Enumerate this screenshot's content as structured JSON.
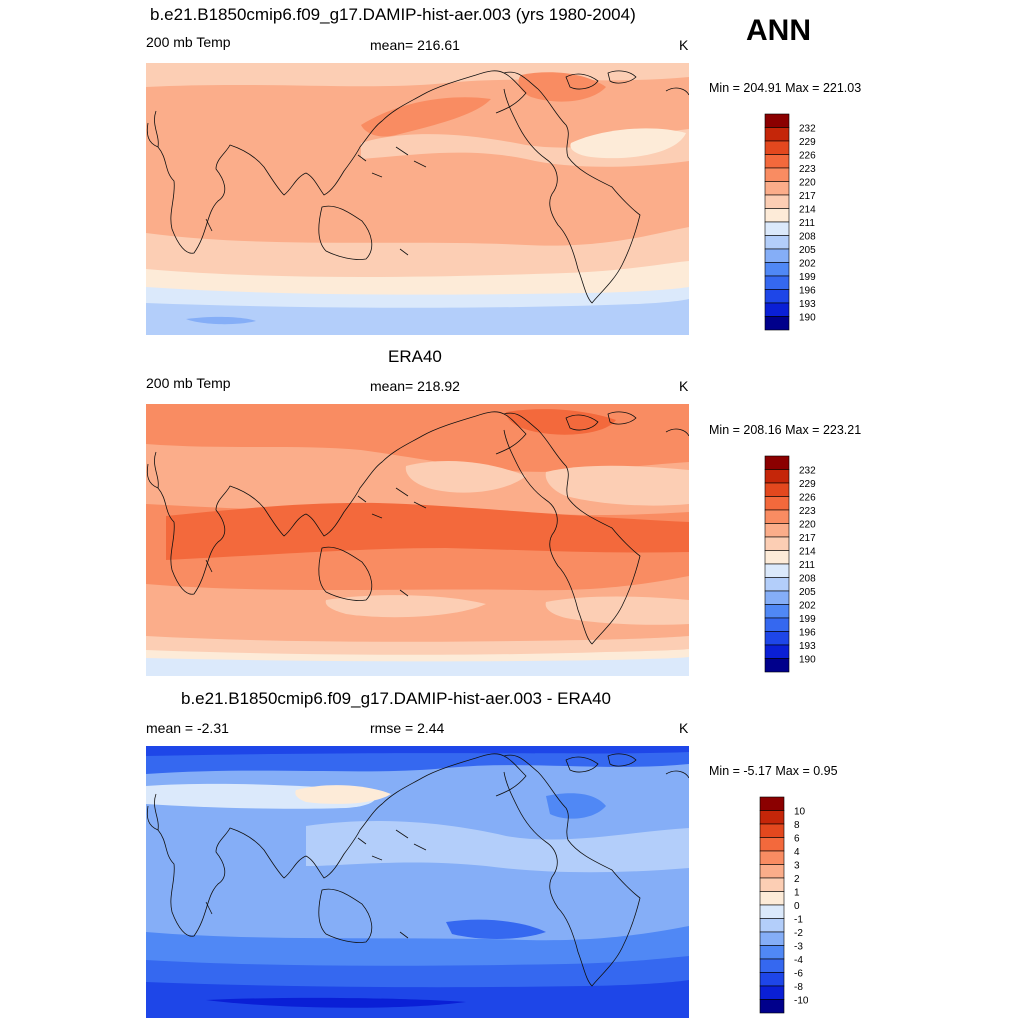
{
  "season": "ANN",
  "palettes": {
    "abs": [
      "#00008b",
      "#0a1fd6",
      "#1e46e8",
      "#3568f0",
      "#5088f5",
      "#85aef7",
      "#b3cefa",
      "#dbe9fb",
      "#fdebd8",
      "#fcceb4",
      "#fbad8a",
      "#f98c62",
      "#f3693c",
      "#e3481e",
      "#c52609",
      "#8b0000"
    ],
    "diff": [
      "#00008b",
      "#0a1fd6",
      "#1e46e8",
      "#3568f0",
      "#5088f5",
      "#85aef7",
      "#b3cefa",
      "#dbe9fb",
      "#fdebd8",
      "#fcceb4",
      "#fbad8a",
      "#f98c62",
      "#f3693c",
      "#e3481e",
      "#c52609",
      "#8b0000"
    ]
  },
  "panels": [
    {
      "title": "b.e21.B1850cmip6.f09_g17.DAMIP-hist-aer.003 (yrs 1980-2004)",
      "left_label": "200 mb Temp",
      "center_label": "mean= 216.61",
      "units": "K",
      "minmax": "Min = 204.91 Max = 221.03",
      "levels": [
        "232",
        "229",
        "226",
        "223",
        "220",
        "217",
        "214",
        "211",
        "208",
        "205",
        "202",
        "199",
        "196",
        "193",
        "190"
      ],
      "base_color": "#fbad8a"
    },
    {
      "title": "ERA40",
      "left_label": "200 mb Temp",
      "center_label": "mean= 218.92",
      "units": "K",
      "minmax": "Min = 208.16 Max = 223.21",
      "levels": [
        "232",
        "229",
        "226",
        "223",
        "220",
        "217",
        "214",
        "211",
        "208",
        "205",
        "202",
        "199",
        "196",
        "193",
        "190"
      ],
      "base_color": "#f98c62"
    },
    {
      "title": "b.e21.B1850cmip6.f09_g17.DAMIP-hist-aer.003 - ERA40",
      "left_label": "mean =  -2.31",
      "center_label": "rmse =   2.44",
      "units": "K",
      "minmax": "Min =  -5.17 Max =   0.95",
      "levels": [
        "10",
        "8",
        "6",
        "4",
        "3",
        "2",
        "1",
        "0",
        "-1",
        "-2",
        "-3",
        "-4",
        "-6",
        "-8",
        "-10"
      ],
      "base_color": "#85aef7"
    }
  ]
}
